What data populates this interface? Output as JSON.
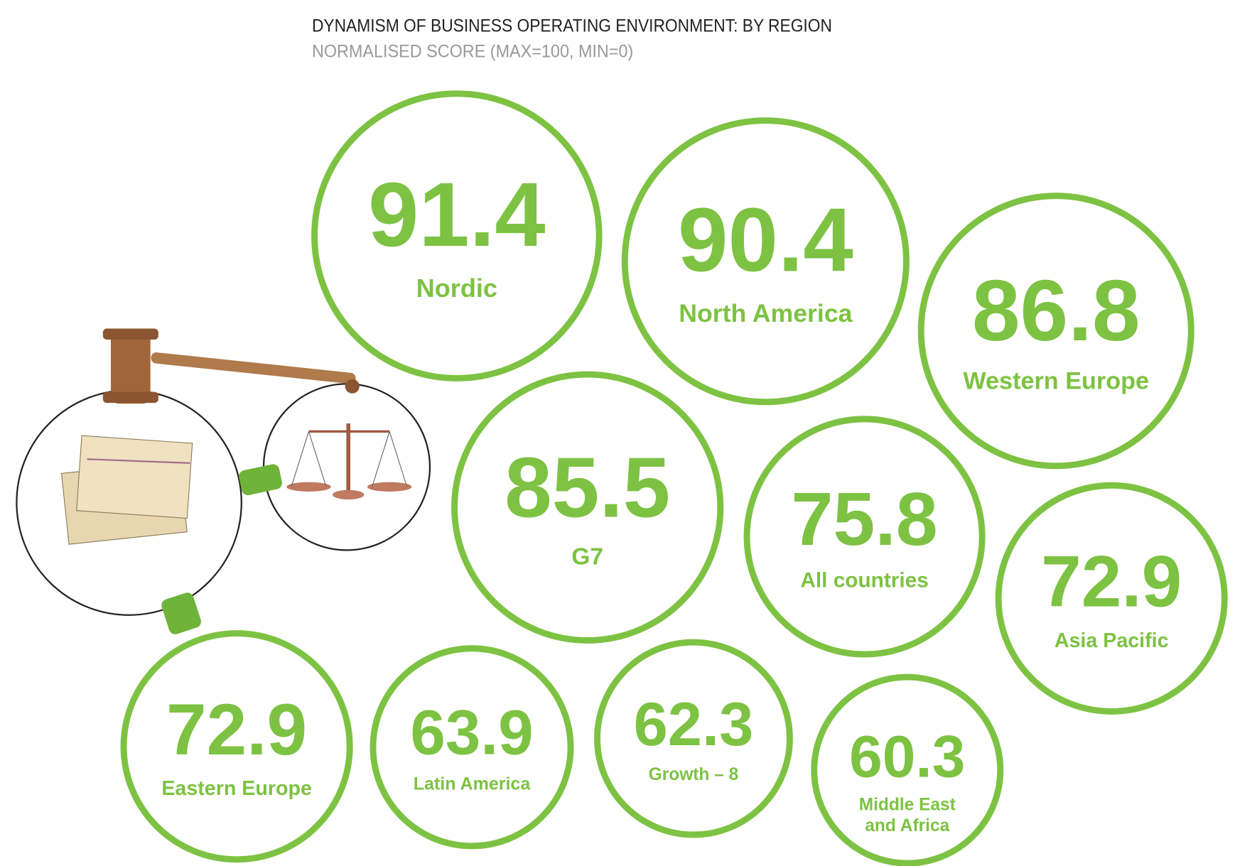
{
  "chart_data": {
    "type": "bubble",
    "title": "DYNAMISM OF BUSINESS OPERATING ENVIRONMENT: BY REGION",
    "subtitle": "NORMALISED SCORE (MAX=100, MIN=0)",
    "categories": [
      "Nordic",
      "North America",
      "Western Europe",
      "G7",
      "All countries",
      "Asia Pacific",
      "Eastern Europe",
      "Latin America",
      "Growth – 8",
      "Middle East and Africa"
    ],
    "values": [
      91.4,
      90.4,
      86.8,
      85.5,
      75.8,
      72.9,
      72.9,
      63.9,
      62.3,
      60.3
    ],
    "color": "#7dc242"
  }
}
